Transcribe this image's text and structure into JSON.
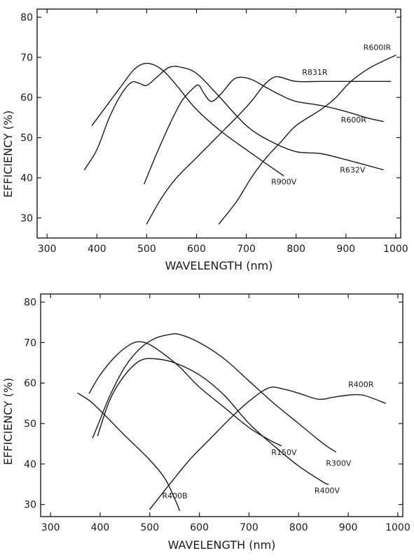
{
  "chart_data": [
    {
      "type": "line",
      "title": "",
      "xlabel": "WAVELENGTH (nm)",
      "ylabel": "EFFICIENCY (%)",
      "xlim": [
        280,
        1010
      ],
      "ylim": [
        25,
        82
      ],
      "xticks": [
        300,
        400,
        500,
        600,
        700,
        800,
        900,
        1000
      ],
      "yticks": [
        30,
        40,
        50,
        60,
        70,
        80
      ],
      "grid": false,
      "series": [
        {
          "name": "R900V",
          "points": [
            [
              390,
              53
            ],
            [
              420,
              58
            ],
            [
              450,
              63
            ],
            [
              475,
              67
            ],
            [
              500,
              68.5
            ],
            [
              530,
              67
            ],
            [
              560,
              63
            ],
            [
              600,
              57
            ],
            [
              650,
              51.5
            ],
            [
              700,
              47
            ],
            [
              740,
              43.5
            ],
            [
              775,
              40.5
            ]
          ]
        },
        {
          "name": "R632V",
          "points": [
            [
              375,
              42
            ],
            [
              400,
              47
            ],
            [
              425,
              55
            ],
            [
              450,
              61
            ],
            [
              470,
              63.8
            ],
            [
              485,
              63.5
            ],
            [
              500,
              63
            ],
            [
              520,
              65
            ],
            [
              545,
              67.5
            ],
            [
              570,
              67.5
            ],
            [
              600,
              66
            ],
            [
              640,
              61
            ],
            [
              700,
              53
            ],
            [
              750,
              49
            ],
            [
              800,
              46.5
            ],
            [
              850,
              46
            ],
            [
              900,
              44.5
            ],
            [
              975,
              42
            ]
          ]
        },
        {
          "name": "R600R",
          "points": [
            [
              495,
              38.5
            ],
            [
              520,
              46
            ],
            [
              545,
              53
            ],
            [
              570,
              59
            ],
            [
              595,
              62.5
            ],
            [
              605,
              63
            ],
            [
              615,
              61
            ],
            [
              630,
              59
            ],
            [
              650,
              61
            ],
            [
              670,
              64
            ],
            [
              685,
              65
            ],
            [
              710,
              64.5
            ],
            [
              740,
              62.5
            ],
            [
              770,
              60.5
            ],
            [
              800,
              59
            ],
            [
              850,
              58
            ],
            [
              900,
              56.5
            ],
            [
              940,
              55
            ],
            [
              975,
              54
            ]
          ]
        },
        {
          "name": "R831R",
          "points": [
            [
              500,
              28.5
            ],
            [
              530,
              35
            ],
            [
              560,
              40
            ],
            [
              600,
              45
            ],
            [
              640,
              50
            ],
            [
              680,
              55
            ],
            [
              710,
              59
            ],
            [
              735,
              63
            ],
            [
              755,
              65
            ],
            [
              770,
              65
            ],
            [
              800,
              64
            ],
            [
              850,
              64
            ],
            [
              900,
              64
            ],
            [
              950,
              64
            ],
            [
              990,
              64
            ]
          ]
        },
        {
          "name": "R600IR",
          "points": [
            [
              645,
              28.5
            ],
            [
              680,
              34
            ],
            [
              710,
              40
            ],
            [
              740,
              45
            ],
            [
              770,
              49
            ],
            [
              800,
              53
            ],
            [
              850,
              57
            ],
            [
              880,
              60
            ],
            [
              910,
              64
            ],
            [
              950,
              67.5
            ],
            [
              1000,
              70.5
            ]
          ]
        }
      ],
      "labels": [
        {
          "text": "R600IR",
          "x": 935,
          "y": 71.8
        },
        {
          "text": "R831R",
          "x": 812,
          "y": 65.6
        },
        {
          "text": "R600R",
          "x": 890,
          "y": 53.8
        },
        {
          "text": "R632V",
          "x": 888,
          "y": 41.3
        },
        {
          "text": "R900V",
          "x": 750,
          "y": 38.3
        }
      ]
    },
    {
      "type": "line",
      "title": "",
      "xlabel": "WAVELENGTH (nm)",
      "ylabel": "EFFICIENCY (%)",
      "xlim": [
        280,
        1010
      ],
      "ylim": [
        27,
        82
      ],
      "xticks": [
        300,
        400,
        500,
        600,
        700,
        800,
        900,
        1000
      ],
      "yticks": [
        30,
        40,
        50,
        60,
        70,
        80
      ],
      "grid": false,
      "series": [
        {
          "name": "R400B",
          "points": [
            [
              355,
              57.5
            ],
            [
              380,
              55.5
            ],
            [
              410,
              52
            ],
            [
              450,
              47
            ],
            [
              500,
              41
            ],
            [
              530,
              36.5
            ],
            [
              550,
              31.5
            ],
            [
              560,
              28.5
            ]
          ]
        },
        {
          "name": "R150V",
          "points": [
            [
              378,
              57.5
            ],
            [
              400,
              62
            ],
            [
              430,
              66.5
            ],
            [
              460,
              69.5
            ],
            [
              480,
              70.2
            ],
            [
              500,
              69.5
            ],
            [
              530,
              67
            ],
            [
              560,
              64
            ],
            [
              600,
              59
            ],
            [
              650,
              54
            ],
            [
              700,
              49
            ],
            [
              740,
              46
            ],
            [
              765,
              44.5
            ]
          ]
        },
        {
          "name": "R300V",
          "points": [
            [
              385,
              46.5
            ],
            [
              400,
              51
            ],
            [
              420,
              57
            ],
            [
              450,
              64
            ],
            [
              480,
              68.5
            ],
            [
              510,
              71
            ],
            [
              540,
              72
            ],
            [
              560,
              72
            ],
            [
              600,
              70
            ],
            [
              650,
              66
            ],
            [
              700,
              60.5
            ],
            [
              750,
              55
            ],
            [
              800,
              50
            ],
            [
              850,
              45
            ],
            [
              875,
              43
            ]
          ]
        },
        {
          "name": "R400V",
          "points": [
            [
              395,
              47
            ],
            [
              420,
              56
            ],
            [
              450,
              62
            ],
            [
              480,
              65.5
            ],
            [
              510,
              66
            ],
            [
              550,
              65
            ],
            [
              600,
              62
            ],
            [
              650,
              57
            ],
            [
              700,
              50
            ],
            [
              750,
              44.5
            ],
            [
              800,
              39.5
            ],
            [
              850,
              35.5
            ],
            [
              860,
              35
            ]
          ]
        },
        {
          "name": "R400R",
          "points": [
            [
              500,
              28.8
            ],
            [
              540,
              35
            ],
            [
              580,
              41
            ],
            [
              620,
              46
            ],
            [
              660,
              51
            ],
            [
              700,
              55.5
            ],
            [
              740,
              58.8
            ],
            [
              770,
              58.5
            ],
            [
              800,
              57.5
            ],
            [
              840,
              56
            ],
            [
              870,
              56.5
            ],
            [
              900,
              57
            ],
            [
              930,
              57
            ],
            [
              975,
              55
            ]
          ]
        }
      ],
      "labels": [
        {
          "text": "R400R",
          "x": 900,
          "y": 59.0
        },
        {
          "text": "R150V",
          "x": 745,
          "y": 42.2
        },
        {
          "text": "R300V",
          "x": 855,
          "y": 39.5
        },
        {
          "text": "R400V",
          "x": 832,
          "y": 32.8
        },
        {
          "text": "R400B",
          "x": 525,
          "y": 31.5
        }
      ]
    }
  ]
}
